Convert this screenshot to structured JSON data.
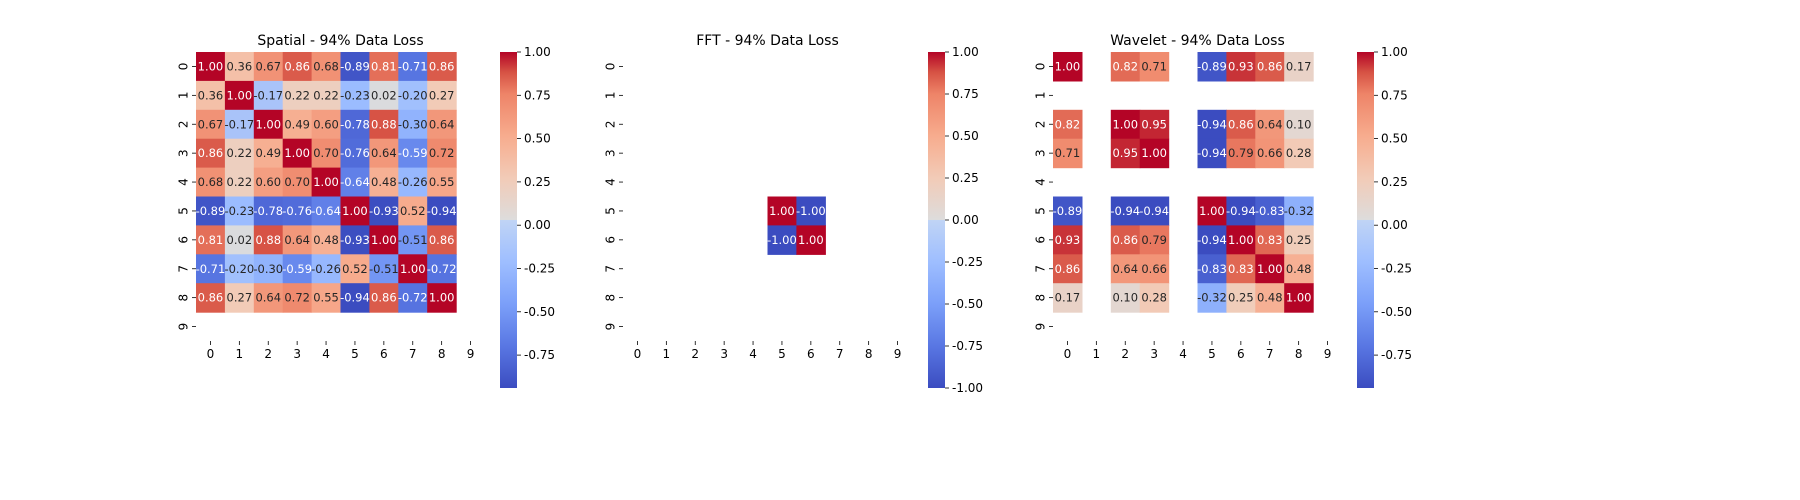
{
  "chart_data": [
    {
      "type": "heatmap",
      "title": "Spatial - 94% Data Loss",
      "x_ticks": [
        "0",
        "1",
        "2",
        "3",
        "4",
        "5",
        "6",
        "7",
        "8",
        "9"
      ],
      "y_ticks": [
        "0",
        "1",
        "2",
        "3",
        "4",
        "5",
        "6",
        "7",
        "8",
        "9"
      ],
      "colorbar": {
        "cmap": "coolwarm",
        "range": [
          -0.94,
          1.0
        ],
        "ticks": [
          "1.00",
          "0.75",
          "0.50",
          "0.25",
          "0.00",
          "-0.25",
          "-0.50",
          "-0.75"
        ]
      },
      "matrix": [
        [
          1.0,
          0.36,
          0.67,
          0.86,
          0.68,
          -0.89,
          0.81,
          -0.71,
          0.86,
          null
        ],
        [
          0.36,
          1.0,
          -0.17,
          0.22,
          0.22,
          -0.23,
          0.02,
          -0.2,
          0.27,
          null
        ],
        [
          0.67,
          -0.17,
          1.0,
          0.49,
          0.6,
          -0.78,
          0.88,
          -0.3,
          0.64,
          null
        ],
        [
          0.86,
          0.22,
          0.49,
          1.0,
          0.7,
          -0.76,
          0.64,
          -0.59,
          0.72,
          null
        ],
        [
          0.68,
          0.22,
          0.6,
          0.7,
          1.0,
          -0.64,
          0.48,
          -0.26,
          0.55,
          null
        ],
        [
          -0.89,
          -0.23,
          -0.78,
          -0.76,
          -0.64,
          1.0,
          -0.93,
          0.52,
          -0.94,
          null
        ],
        [
          0.81,
          0.02,
          0.88,
          0.64,
          0.48,
          -0.93,
          1.0,
          -0.51,
          0.86,
          null
        ],
        [
          -0.71,
          -0.2,
          -0.3,
          -0.59,
          -0.26,
          0.52,
          -0.51,
          1.0,
          -0.72,
          null
        ],
        [
          0.86,
          0.27,
          0.64,
          0.72,
          0.55,
          -0.94,
          0.86,
          -0.72,
          1.0,
          null
        ],
        [
          null,
          null,
          null,
          null,
          null,
          null,
          null,
          null,
          null,
          null
        ]
      ]
    },
    {
      "type": "heatmap",
      "title": "FFT - 94% Data Loss",
      "x_ticks": [
        "0",
        "1",
        "2",
        "3",
        "4",
        "5",
        "6",
        "7",
        "8",
        "9"
      ],
      "y_ticks": [
        "0",
        "1",
        "2",
        "3",
        "4",
        "5",
        "6",
        "7",
        "8",
        "9"
      ],
      "colorbar": {
        "cmap": "coolwarm",
        "range": [
          -1.0,
          1.0
        ],
        "ticks": [
          "1.00",
          "0.75",
          "0.50",
          "0.25",
          "0.00",
          "-0.25",
          "-0.50",
          "-0.75",
          "-1.00"
        ]
      },
      "matrix": [
        [
          null,
          null,
          null,
          null,
          null,
          null,
          null,
          null,
          null,
          null
        ],
        [
          null,
          null,
          null,
          null,
          null,
          null,
          null,
          null,
          null,
          null
        ],
        [
          null,
          null,
          null,
          null,
          null,
          null,
          null,
          null,
          null,
          null
        ],
        [
          null,
          null,
          null,
          null,
          null,
          null,
          null,
          null,
          null,
          null
        ],
        [
          null,
          null,
          null,
          null,
          null,
          null,
          null,
          null,
          null,
          null
        ],
        [
          null,
          null,
          null,
          null,
          null,
          1.0,
          -1.0,
          null,
          null,
          null
        ],
        [
          null,
          null,
          null,
          null,
          null,
          -1.0,
          1.0,
          null,
          null,
          null
        ],
        [
          null,
          null,
          null,
          null,
          null,
          null,
          null,
          null,
          null,
          null
        ],
        [
          null,
          null,
          null,
          null,
          null,
          null,
          null,
          null,
          null,
          null
        ],
        [
          null,
          null,
          null,
          null,
          null,
          null,
          null,
          null,
          null,
          null
        ]
      ]
    },
    {
      "type": "heatmap",
      "title": "Wavelet - 94% Data Loss",
      "x_ticks": [
        "0",
        "1",
        "2",
        "3",
        "4",
        "5",
        "6",
        "7",
        "8",
        "9"
      ],
      "y_ticks": [
        "0",
        "1",
        "2",
        "3",
        "4",
        "5",
        "6",
        "7",
        "8",
        "9"
      ],
      "colorbar": {
        "cmap": "coolwarm",
        "range": [
          -0.94,
          1.0
        ],
        "ticks": [
          "1.00",
          "0.75",
          "0.50",
          "0.25",
          "0.00",
          "-0.25",
          "-0.50",
          "-0.75"
        ]
      },
      "matrix": [
        [
          1.0,
          null,
          0.82,
          0.71,
          null,
          -0.89,
          0.93,
          0.86,
          0.17,
          null
        ],
        [
          null,
          null,
          null,
          null,
          null,
          null,
          null,
          null,
          null,
          null
        ],
        [
          0.82,
          null,
          1.0,
          0.95,
          null,
          -0.94,
          0.86,
          0.64,
          0.1,
          null
        ],
        [
          0.71,
          null,
          0.95,
          1.0,
          null,
          -0.94,
          0.79,
          0.66,
          0.28,
          null
        ],
        [
          null,
          null,
          null,
          null,
          null,
          null,
          null,
          null,
          null,
          null
        ],
        [
          -0.89,
          null,
          -0.94,
          -0.94,
          null,
          1.0,
          -0.94,
          -0.83,
          -0.32,
          null
        ],
        [
          0.93,
          null,
          0.86,
          0.79,
          null,
          -0.94,
          1.0,
          0.83,
          0.25,
          null
        ],
        [
          0.86,
          null,
          0.64,
          0.66,
          null,
          -0.83,
          0.83,
          1.0,
          0.48,
          null
        ],
        [
          0.17,
          null,
          0.1,
          0.28,
          null,
          -0.32,
          0.25,
          0.48,
          1.0,
          null
        ],
        [
          null,
          null,
          null,
          null,
          null,
          null,
          null,
          null,
          null,
          null
        ]
      ]
    }
  ]
}
